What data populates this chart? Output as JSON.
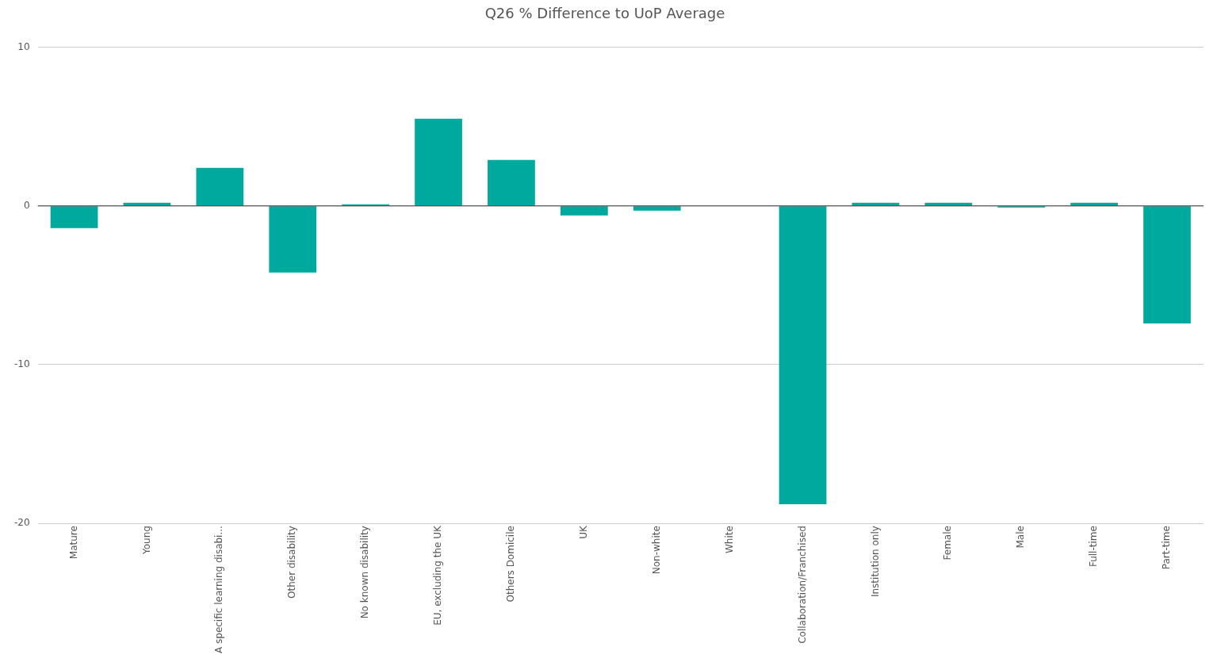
{
  "chart_data": {
    "type": "bar",
    "title": "Q26 % Difference to UoP Average",
    "categories": [
      "Mature",
      "Young",
      "A specific learning disabi...",
      "Other disability",
      "No known disability",
      "EU, excluding the UK",
      "Others Domicile",
      "UK",
      "Non-white",
      "White",
      "Collaboration/Franchised",
      "Institution only",
      "Female",
      "Male",
      "Full-time",
      "Part-time"
    ],
    "values": [
      -1.4,
      0.2,
      2.4,
      -4.2,
      0.1,
      5.5,
      2.9,
      -0.6,
      -0.3,
      0,
      -18.8,
      0.2,
      0.2,
      -0.1,
      0.2,
      -7.4
    ],
    "color": "#00a99d",
    "ylim": [
      -20,
      10
    ],
    "yticks": [
      -20,
      -10,
      0,
      10
    ],
    "grid": "y",
    "legend": false
  }
}
